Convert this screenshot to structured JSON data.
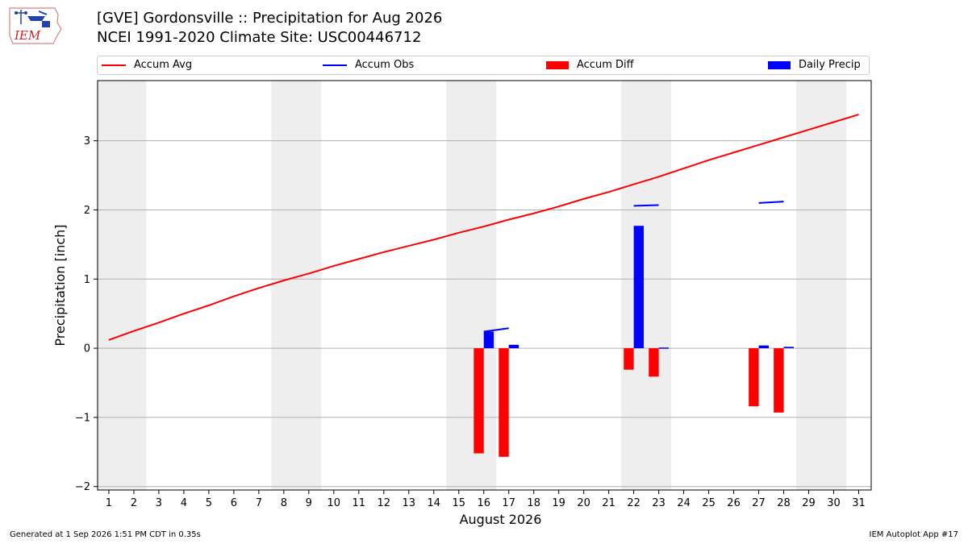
{
  "title_line1": "[GVE] Gordonsville :: Precipitation for Aug 2026",
  "title_line2": "NCEI 1991-2020 Climate Site: USC00446712",
  "logo_text": "IEM",
  "footer_left": "Generated at 1 Sep 2026 1:51 PM CDT in 0.35s",
  "footer_right": "IEM Autoplot App #17",
  "legend": [
    {
      "label": "Accum Avg",
      "kind": "line",
      "color": "#ff0000"
    },
    {
      "label": "Accum Obs",
      "kind": "line",
      "color": "#0000ff"
    },
    {
      "label": "Accum Diff",
      "kind": "box",
      "color": "#ff0000"
    },
    {
      "label": "Daily Precip",
      "kind": "box",
      "color": "#0000ff"
    }
  ],
  "chart_data": {
    "type": "bar",
    "xlabel": "August 2026",
    "ylabel": "Precipitation [inch]",
    "x": [
      1,
      2,
      3,
      4,
      5,
      6,
      7,
      8,
      9,
      10,
      11,
      12,
      13,
      14,
      15,
      16,
      17,
      18,
      19,
      20,
      21,
      22,
      23,
      24,
      25,
      26,
      27,
      28,
      29,
      30,
      31
    ],
    "xlim": [
      0.55,
      31.5
    ],
    "ylim": [
      -2.05,
      3.87
    ],
    "yticks": [
      -2,
      -1,
      0,
      1,
      2,
      3
    ],
    "ytick_labels": [
      "−2",
      "−1",
      "0",
      "1",
      "2",
      "3"
    ],
    "grid": true,
    "weekend_shading": [
      [
        1,
        2
      ],
      [
        8,
        9
      ],
      [
        15,
        16
      ],
      [
        22,
        23
      ],
      [
        29,
        30
      ]
    ],
    "weekend_color": "#eeeeee",
    "series": [
      {
        "name": "Accum Avg",
        "type": "line",
        "color": "#ff0000",
        "values": [
          0.12,
          0.25,
          0.37,
          0.5,
          0.62,
          0.75,
          0.87,
          0.98,
          1.08,
          1.19,
          1.29,
          1.39,
          1.48,
          1.57,
          1.67,
          1.76,
          1.86,
          1.95,
          2.05,
          2.16,
          2.26,
          2.37,
          2.48,
          2.6,
          2.72,
          2.83,
          2.94,
          3.05,
          3.16,
          3.27,
          3.38
        ]
      },
      {
        "name": "Accum Obs",
        "type": "line",
        "color": "#0000ff",
        "segments": [
          {
            "x": [
              16,
              17
            ],
            "values": [
              0.24,
              0.29
            ]
          },
          {
            "x": [
              22,
              23
            ],
            "values": [
              2.06,
              2.07
            ]
          },
          {
            "x": [
              27,
              28
            ],
            "values": [
              2.1,
              2.12
            ]
          }
        ]
      },
      {
        "name": "Accum Diff",
        "type": "bar",
        "color": "#ff0000",
        "x": [
          16,
          17,
          22,
          23,
          27,
          28
        ],
        "values": [
          -1.52,
          -1.57,
          -0.31,
          -0.41,
          -0.84,
          -0.93
        ]
      },
      {
        "name": "Daily Precip",
        "type": "bar",
        "color": "#0000ff",
        "x": [
          16,
          17,
          22,
          23,
          27,
          28
        ],
        "values": [
          0.24,
          0.05,
          1.77,
          0.01,
          0.04,
          0.02
        ]
      }
    ]
  }
}
